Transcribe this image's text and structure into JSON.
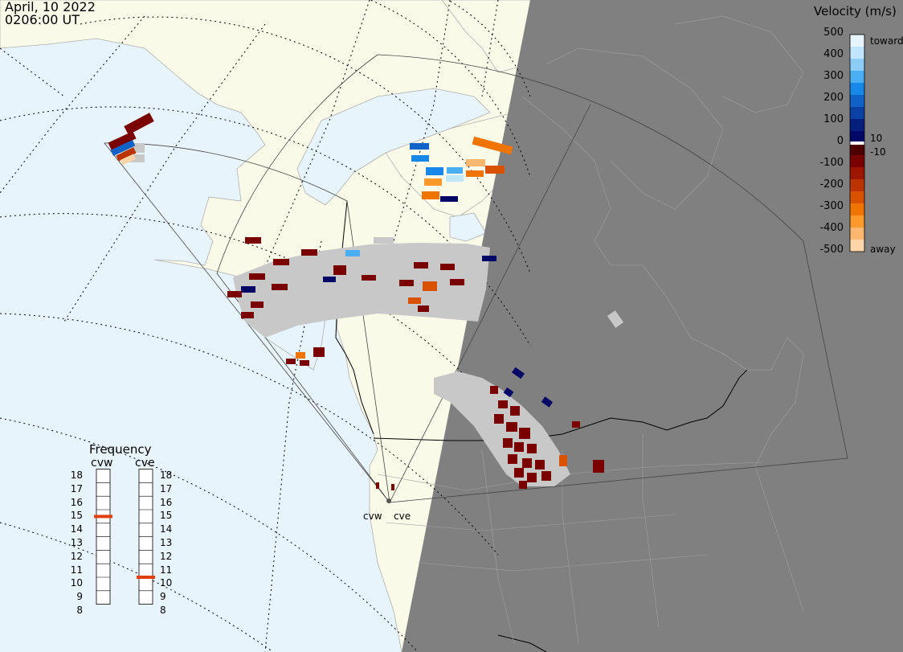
{
  "header": {
    "date": "April, 10 2022",
    "time": "0206:00 UT"
  },
  "velocity_scale": {
    "title": "Velocity (m/s)",
    "ticks": [
      "500",
      "400",
      "300",
      "200",
      "100",
      "0",
      "-100",
      "-200",
      "-300",
      "-400",
      "-500"
    ],
    "inner_ticks": [
      "10",
      "-10"
    ],
    "toward_label": "toward",
    "away_label": "away",
    "colors": [
      "#e6f4fc",
      "#bfe6fb",
      "#8ccdf8",
      "#4aaef3",
      "#1788e8",
      "#0f62c7",
      "#0a41a3",
      "#061f7d",
      "#020866",
      "#4d0000",
      "#7a0000",
      "#9c1600",
      "#bb3300",
      "#d95200",
      "#ef7400",
      "#fb9a2b",
      "#fdb76f",
      "#fed4a9"
    ]
  },
  "frequency": {
    "title": "Frequency",
    "radars": [
      {
        "name": "cvw",
        "value": 15
      },
      {
        "name": "cve",
        "value": 10.5
      }
    ],
    "ticks": [
      "18",
      "17",
      "16",
      "15",
      "14",
      "13",
      "12",
      "11",
      "10",
      "9",
      "8"
    ]
  },
  "sites": [
    {
      "name": "cvw"
    },
    {
      "name": "cve"
    }
  ],
  "colors": {
    "ocean": "#e8f4fc",
    "land": "#fafae8",
    "night": "#808080",
    "ground_scatter": "#c8c8c8"
  }
}
